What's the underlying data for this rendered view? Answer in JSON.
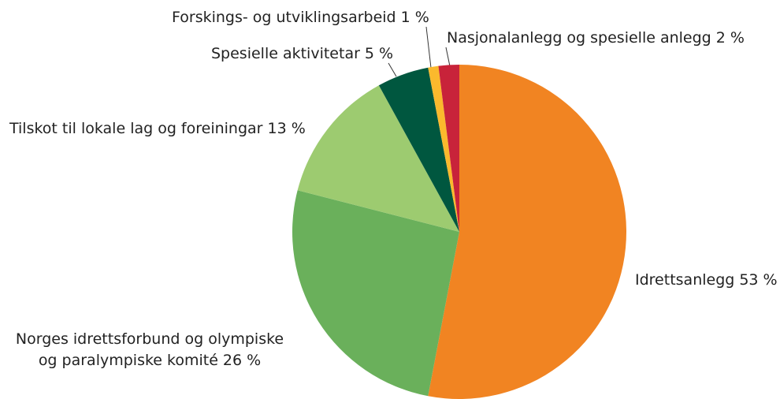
{
  "chart_data": {
    "type": "pie",
    "categories": [
      "Idrettsanlegg",
      "Norges idrettsforbund og olympiske og paralympiske komité",
      "Tilskot til lokale lag og foreiningar",
      "Spesielle aktivitetar",
      "Forskings- og utviklingsarbeid",
      "Nasjonalanlegg og spesielle anlegg"
    ],
    "values": [
      53,
      26,
      13,
      5,
      1,
      2
    ],
    "value_labels": [
      "53 %",
      "26 %",
      "13 %",
      "5 %",
      "1 %",
      "2 %"
    ],
    "colors": [
      "#f18422",
      "#6ab05b",
      "#9dcb70",
      "#00573f",
      "#fbb92d",
      "#c8233a"
    ]
  }
}
